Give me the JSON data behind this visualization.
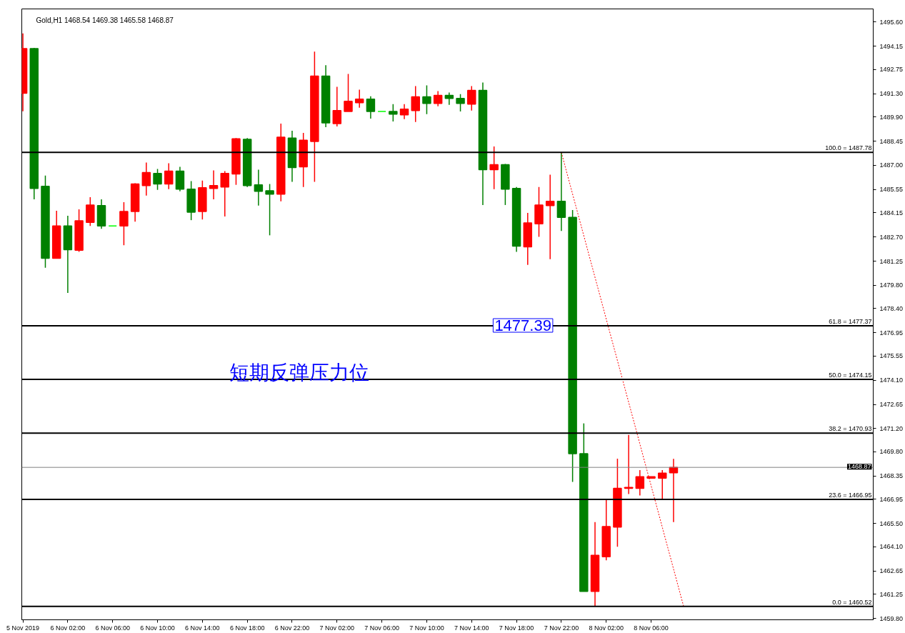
{
  "chart_data": {
    "type": "candlestick",
    "title": "Gold,H1  1468.54 1469.38 1465.58 1468.87",
    "x": [
      "2019-11-05T22:00",
      "2019-11-05T23:00",
      "2019-11-06T00:00",
      "2019-11-06T01:00",
      "2019-11-06T02:00",
      "2019-11-06T03:00",
      "2019-11-06T04:00",
      "2019-11-06T05:00",
      "2019-11-06T06:00",
      "2019-11-06T07:00",
      "2019-11-06T08:00",
      "2019-11-06T09:00",
      "2019-11-06T10:00",
      "2019-11-06T11:00",
      "2019-11-06T12:00",
      "2019-11-06T13:00",
      "2019-11-06T14:00",
      "2019-11-06T15:00",
      "2019-11-06T16:00",
      "2019-11-06T17:00",
      "2019-11-06T18:00",
      "2019-11-06T19:00",
      "2019-11-06T20:00",
      "2019-11-06T21:00",
      "2019-11-06T22:00",
      "2019-11-06T23:00",
      "2019-11-07T00:00",
      "2019-11-07T01:00",
      "2019-11-07T02:00",
      "2019-11-07T03:00",
      "2019-11-07T04:00",
      "2019-11-07T05:00",
      "2019-11-07T06:00",
      "2019-11-07T07:00",
      "2019-11-07T08:00",
      "2019-11-07T09:00",
      "2019-11-07T10:00",
      "2019-11-07T11:00",
      "2019-11-07T12:00",
      "2019-11-07T13:00",
      "2019-11-07T14:00",
      "2019-11-07T15:00",
      "2019-11-07T16:00",
      "2019-11-07T17:00",
      "2019-11-07T18:00",
      "2019-11-07T19:00",
      "2019-11-07T20:00",
      "2019-11-07T21:00",
      "2019-11-07T22:00",
      "2019-11-07T23:00",
      "2019-11-08T00:00",
      "2019-11-08T01:00",
      "2019-11-08T02:00",
      "2019-11-08T03:00",
      "2019-11-08T04:00",
      "2019-11-08T05:00",
      "2019-11-08T06:00",
      "2019-11-08T07:00",
      "2019-11-08T08:00"
    ],
    "ohlc": [
      [
        1491.33,
        1494.92,
        1490.25,
        1494.01
      ],
      [
        1494.01,
        1494.05,
        1484.96,
        1485.61
      ],
      [
        1485.74,
        1486.39,
        1480.85,
        1481.42
      ],
      [
        1481.42,
        1484.27,
        1481.42,
        1483.36
      ],
      [
        1483.36,
        1483.97,
        1479.34,
        1481.94
      ],
      [
        1481.9,
        1484.36,
        1481.81,
        1483.67
      ],
      [
        1483.58,
        1485.09,
        1483.36,
        1484.62
      ],
      [
        1484.58,
        1484.96,
        1483.19,
        1483.36
      ],
      [
        1483.36,
        1483.36,
        1483.36,
        1483.36
      ],
      [
        1483.36,
        1484.79,
        1482.2,
        1484.23
      ],
      [
        1484.23,
        1485.92,
        1483.62,
        1485.88
      ],
      [
        1485.79,
        1487.17,
        1485.18,
        1486.57
      ],
      [
        1486.52,
        1486.78,
        1485.53,
        1485.88
      ],
      [
        1485.88,
        1487.13,
        1485.57,
        1486.65
      ],
      [
        1486.65,
        1486.91,
        1485.44,
        1485.57
      ],
      [
        1485.57,
        1486.05,
        1483.71,
        1484.19
      ],
      [
        1484.23,
        1486.09,
        1483.75,
        1485.66
      ],
      [
        1485.61,
        1486.7,
        1484.96,
        1485.79
      ],
      [
        1485.7,
        1486.65,
        1483.93,
        1486.52
      ],
      [
        1486.48,
        1488.64,
        1485.83,
        1488.6
      ],
      [
        1488.56,
        1488.64,
        1485.7,
        1485.79
      ],
      [
        1485.83,
        1486.74,
        1484.58,
        1485.44
      ],
      [
        1485.48,
        1485.88,
        1482.8,
        1485.27
      ],
      [
        1485.27,
        1489.51,
        1484.84,
        1488.69
      ],
      [
        1488.64,
        1489.08,
        1486.01,
        1486.87
      ],
      [
        1486.91,
        1488.95,
        1485.7,
        1488.51
      ],
      [
        1488.43,
        1493.83,
        1486.01,
        1492.36
      ],
      [
        1492.36,
        1493.01,
        1489.29,
        1489.55
      ],
      [
        1489.51,
        1491.71,
        1489.34,
        1490.29
      ],
      [
        1490.24,
        1492.49,
        1490.24,
        1490.85
      ],
      [
        1490.76,
        1491.54,
        1490.46,
        1490.98
      ],
      [
        1490.98,
        1491.15,
        1489.81,
        1490.24
      ],
      [
        1490.24,
        1490.24,
        1490.24,
        1490.24
      ],
      [
        1490.24,
        1490.68,
        1489.64,
        1490.07
      ],
      [
        1490.03,
        1490.68,
        1489.77,
        1490.38
      ],
      [
        1490.29,
        1491.76,
        1489.6,
        1491.11
      ],
      [
        1491.11,
        1491.8,
        1490.07,
        1490.72
      ],
      [
        1490.72,
        1491.46,
        1490.55,
        1491.2
      ],
      [
        1491.2,
        1491.37,
        1490.63,
        1491.02
      ],
      [
        1491.02,
        1491.28,
        1490.24,
        1490.72
      ],
      [
        1490.68,
        1491.76,
        1490.29,
        1491.5
      ],
      [
        1491.5,
        1491.97,
        1484.62,
        1486.74
      ],
      [
        1486.74,
        1488.13,
        1485.57,
        1487.04
      ],
      [
        1487.04,
        1487.08,
        1484.62,
        1485.57
      ],
      [
        1485.61,
        1485.7,
        1481.81,
        1482.15
      ],
      [
        1482.11,
        1484.14,
        1481.03,
        1483.54
      ],
      [
        1483.49,
        1485.7,
        1482.71,
        1484.62
      ],
      [
        1484.58,
        1486.44,
        1481.37,
        1484.84
      ],
      [
        1484.84,
        1487.78,
        1483.06,
        1483.88
      ],
      [
        1483.88,
        1484.32,
        1468.0,
        1469.69
      ],
      [
        1469.69,
        1471.51,
        1461.43,
        1461.43
      ],
      [
        1461.43,
        1465.58,
        1460.52,
        1463.59
      ],
      [
        1463.5,
        1466.96,
        1463.29,
        1465.32
      ],
      [
        1465.28,
        1469.39,
        1464.11,
        1467.61
      ],
      [
        1467.61,
        1470.82,
        1467.27,
        1467.66
      ],
      [
        1467.61,
        1468.7,
        1467.18,
        1468.31
      ],
      [
        1468.22,
        1468.31,
        1468.22,
        1468.31
      ],
      [
        1468.22,
        1468.7,
        1466.92,
        1468.52
      ],
      [
        1468.54,
        1469.38,
        1465.58,
        1468.87
      ]
    ],
    "colors": [
      "#ff0000",
      "#008000",
      "#008000",
      "#ff0000",
      "#008000",
      "#ff0000",
      "#ff0000",
      "#008000",
      "#00ff00",
      "#ff0000",
      "#ff0000",
      "#ff0000",
      "#008000",
      "#ff0000",
      "#008000",
      "#008000",
      "#ff0000",
      "#ff0000",
      "#ff0000",
      "#ff0000",
      "#008000",
      "#008000",
      "#008000",
      "#ff0000",
      "#008000",
      "#ff0000",
      "#ff0000",
      "#008000",
      "#ff0000",
      "#ff0000",
      "#ff0000",
      "#008000",
      "#00ff00",
      "#008000",
      "#ff0000",
      "#ff0000",
      "#008000",
      "#ff0000",
      "#008000",
      "#008000",
      "#ff0000",
      "#008000",
      "#ff0000",
      "#008000",
      "#008000",
      "#ff0000",
      "#ff0000",
      "#ff0000",
      "#008000",
      "#008000",
      "#008000",
      "#ff0000",
      "#ff0000",
      "#ff0000",
      "#ff0000",
      "#ff0000",
      "#ff0000",
      "#ff0000",
      "#ff0000"
    ],
    "series": [
      {
        "type": "line",
        "x": [
          "2019-11-07T22:00",
          "2019-11-08T08:54"
        ],
        "values": [
          1487.78,
          1460.52
        ],
        "color": "#ff0000",
        "line_style": "dotted"
      }
    ],
    "ref_lines": [
      {
        "axis": "y",
        "value": 1487.78,
        "label": "100.0 = 1487.78",
        "color": "#000000"
      },
      {
        "axis": "y",
        "value": 1477.37,
        "label": "61.8 = 1477.37",
        "color": "#000000"
      },
      {
        "axis": "y",
        "value": 1474.15,
        "label": "50.0 = 1474.15",
        "color": "#000000"
      },
      {
        "axis": "y",
        "value": 1470.93,
        "label": "38.2 = 1470.93",
        "color": "#000000"
      },
      {
        "axis": "y",
        "value": 1466.95,
        "label": "23.6 = 1466.95",
        "color": "#000000"
      },
      {
        "axis": "y",
        "value": 1460.52,
        "label": "0.0 = 1460.52",
        "color": "#000000"
      },
      {
        "axis": "y",
        "value": 1468.87,
        "label": "1468.87",
        "color": "#808080"
      }
    ],
    "annotations": [
      {
        "text": "1477.39",
        "x": "2019-11-07T22:00",
        "y": 1477.39
      },
      "短期反弹压力位"
    ],
    "xlim": [
      "2019-11-05T21:54",
      "2019-11-09T01:48"
    ],
    "xticks": [
      {
        "value": "2019-11-05T22:00",
        "label": "5 Nov 2019"
      },
      {
        "value": "2019-11-06T02:00",
        "label": "6 Nov 02:00"
      },
      {
        "value": "2019-11-06T06:00",
        "label": "6 Nov 06:00"
      },
      {
        "value": "2019-11-06T10:00",
        "label": "6 Nov 10:00"
      },
      {
        "value": "2019-11-06T14:00",
        "label": "6 Nov 14:00"
      },
      {
        "value": "2019-11-06T18:00",
        "label": "6 Nov 18:00"
      },
      {
        "value": "2019-11-06T22:00",
        "label": "6 Nov 22:00"
      },
      {
        "value": "2019-11-07T02:00",
        "label": "7 Nov 02:00"
      },
      {
        "value": "2019-11-07T06:00",
        "label": "7 Nov 06:00"
      },
      {
        "value": "2019-11-07T10:00",
        "label": "7 Nov 10:00"
      },
      {
        "value": "2019-11-07T14:00",
        "label": "7 Nov 14:00"
      },
      {
        "value": "2019-11-07T18:00",
        "label": "7 Nov 18:00"
      },
      {
        "value": "2019-11-07T22:00",
        "label": "7 Nov 22:00"
      },
      {
        "value": "2019-11-08T02:00",
        "label": "8 Nov 02:00"
      },
      {
        "value": "2019-11-08T06:00",
        "label": "8 Nov 06:00"
      }
    ],
    "ylim": [
      1459.72,
      1496.39
    ],
    "yticks": [
      {
        "value": 1495.6,
        "label": "1495.60"
      },
      {
        "value": 1494.15,
        "label": "1494.15"
      },
      {
        "value": 1492.75,
        "label": "1492.75"
      },
      {
        "value": 1491.3,
        "label": "1491.30"
      },
      {
        "value": 1489.9,
        "label": "1489.90"
      },
      {
        "value": 1488.45,
        "label": "1488.45"
      },
      {
        "value": 1487.0,
        "label": "1487.00"
      },
      {
        "value": 1485.55,
        "label": "1485.55"
      },
      {
        "value": 1484.15,
        "label": "1484.15"
      },
      {
        "value": 1482.7,
        "label": "1482.70"
      },
      {
        "value": 1481.25,
        "label": "1481.25"
      },
      {
        "value": 1479.8,
        "label": "1479.80"
      },
      {
        "value": 1478.4,
        "label": "1478.40"
      },
      {
        "value": 1476.95,
        "label": "1476.95"
      },
      {
        "value": 1475.55,
        "label": "1475.55"
      },
      {
        "value": 1474.1,
        "label": "1474.10"
      },
      {
        "value": 1472.65,
        "label": "1472.65"
      },
      {
        "value": 1471.2,
        "label": "1471.20"
      },
      {
        "value": 1469.8,
        "label": "1469.80"
      },
      {
        "value": 1468.35,
        "label": "1468.35"
      },
      {
        "value": 1466.95,
        "label": "1466.95"
      },
      {
        "value": 1465.5,
        "label": "1465.50"
      },
      {
        "value": 1464.1,
        "label": "1464.10"
      },
      {
        "value": 1462.65,
        "label": "1462.65"
      },
      {
        "value": 1461.25,
        "label": "1461.25"
      },
      {
        "value": 1459.8,
        "label": "1459.80"
      }
    ],
    "grid": false
  }
}
